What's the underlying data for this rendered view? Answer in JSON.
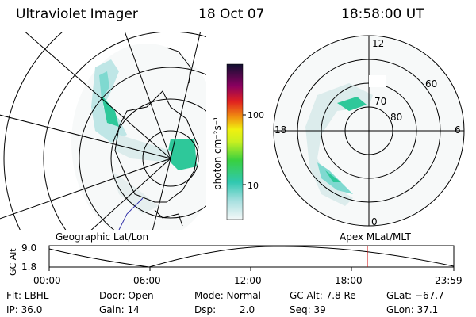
{
  "header": {
    "title": "Ultraviolet Imager",
    "date": "18 Oct 07",
    "time": "18:58:00 UT"
  },
  "colorbar": {
    "unit_label": "photon cm⁻²s⁻¹",
    "tick_100": "100",
    "tick_10": "10",
    "scale": "log"
  },
  "geo_panel": {
    "label": "Geographic Lat/Lon"
  },
  "polar_panel": {
    "label": "Apex MLat/MLT",
    "mlt_top": "12",
    "mlt_left": "18",
    "mlt_right": "6",
    "mlt_bottom": "0",
    "lat_60": "60",
    "lat_70": "70",
    "lat_80": "80"
  },
  "orbit_plot": {
    "ylabel": "GC Alt",
    "y_max_label": "9.0",
    "y_min_label": "1.8",
    "x_ticks": [
      "00:00",
      "06:00",
      "12:00",
      "18:00",
      "23:59"
    ],
    "current_time_marker": "18:58"
  },
  "status": {
    "filter": "Flt: LBHL",
    "door": "Door: Open",
    "mode": "Mode: Normal",
    "gc_alt": "GC Alt: 7.8 Re",
    "glat": "GLat: −67.7",
    "ip": "IP: 36.0",
    "gain": "Gain: 14",
    "dsp_label": "Dsp:",
    "dsp_value": "2.0",
    "seq": "Seq: 39",
    "glon": "GLon: 37.1"
  },
  "colors": {
    "marker": "#cc0000",
    "aurora_bright": "#2ec89a",
    "aurora_mid": "#7fd9d0",
    "aurora_faint": "#dcecec"
  }
}
